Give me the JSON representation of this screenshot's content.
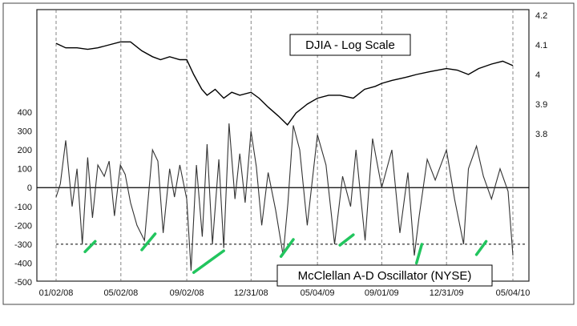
{
  "chart_data": {
    "type": "line",
    "title": "",
    "grid": "vertical dashed lines at date ticks",
    "x_axis": {
      "ticks": [
        "01/02/08",
        "05/02/08",
        "09/02/08",
        "12/31/08",
        "05/04/09",
        "09/01/09",
        "12/31/09",
        "05/04/10"
      ]
    },
    "left_axis": {
      "ticks": [
        "400",
        "300",
        "200",
        "100",
        "0",
        "-100",
        "-200",
        "-300",
        "-400",
        "-500"
      ],
      "ylim": [
        -500,
        400
      ]
    },
    "right_axis": {
      "ticks": [
        "4.2",
        "4.1",
        "4",
        "3.9",
        "3.8"
      ],
      "scale": "log",
      "ylim": [
        3.65,
        4.2
      ]
    },
    "reference_line": {
      "value": -300,
      "style": "dashed"
    },
    "zero_line": {
      "value": 0
    },
    "series": [
      {
        "name": "DJIA - Log Scale",
        "axis": "right",
        "x": [
          "01/02/08",
          "01/20/08",
          "02/10/08",
          "03/01/08",
          "03/20/08",
          "04/10/08",
          "05/01/08",
          "05/20/08",
          "06/10/08",
          "06/30/08",
          "07/15/08",
          "08/01/08",
          "08/20/08",
          "09/02/08",
          "09/15/08",
          "09/30/08",
          "10/10/08",
          "10/25/08",
          "11/10/08",
          "11/25/08",
          "12/10/08",
          "12/31/08",
          "01/15/09",
          "02/01/09",
          "02/20/09",
          "03/09/09",
          "03/25/09",
          "04/15/09",
          "05/04/09",
          "05/25/09",
          "06/15/09",
          "07/10/09",
          "07/31/09",
          "08/20/09",
          "09/01/09",
          "09/20/09",
          "10/15/09",
          "11/05/09",
          "12/01/09",
          "12/31/09",
          "01/20/10",
          "02/10/10",
          "03/01/10",
          "03/25/10",
          "04/15/10",
          "05/04/10"
        ],
        "values": [
          4.105,
          4.09,
          4.09,
          4.085,
          4.09,
          4.1,
          4.11,
          4.11,
          4.08,
          4.06,
          4.05,
          4.06,
          4.05,
          4.05,
          4.0,
          3.95,
          3.93,
          3.95,
          3.92,
          3.94,
          3.93,
          3.94,
          3.92,
          3.89,
          3.86,
          3.83,
          3.87,
          3.9,
          3.92,
          3.93,
          3.93,
          3.92,
          3.95,
          3.96,
          3.97,
          3.98,
          3.99,
          4.0,
          4.01,
          4.02,
          4.015,
          4.0,
          4.02,
          4.035,
          4.045,
          4.03
        ]
      },
      {
        "name": "McClellan A-D Oscillator (NYSE)",
        "axis": "left",
        "x": [
          "01/02/08",
          "01/10/08",
          "01/20/08",
          "02/01/08",
          "02/10/08",
          "02/20/08",
          "03/01/08",
          "03/10/08",
          "03/20/08",
          "04/01/08",
          "04/10/08",
          "04/20/08",
          "05/01/08",
          "05/10/08",
          "05/20/08",
          "06/01/08",
          "06/15/08",
          "06/30/08",
          "07/10/08",
          "07/20/08",
          "08/01/08",
          "08/10/08",
          "08/20/08",
          "09/02/08",
          "09/10/08",
          "09/20/08",
          "10/01/08",
          "10/10/08",
          "10/20/08",
          "11/01/08",
          "11/10/08",
          "11/20/08",
          "12/01/08",
          "12/10/08",
          "12/20/08",
          "12/31/08",
          "01/10/09",
          "01/20/09",
          "02/01/09",
          "02/15/09",
          "03/01/09",
          "03/10/09",
          "03/20/09",
          "04/01/09",
          "04/15/09",
          "05/04/09",
          "05/20/09",
          "06/05/09",
          "06/20/09",
          "07/05/09",
          "07/15/09",
          "08/01/09",
          "08/15/09",
          "09/01/09",
          "09/20/09",
          "10/05/09",
          "10/20/09",
          "11/01/09",
          "11/10/09",
          "11/25/09",
          "12/10/09",
          "12/31/09",
          "01/15/10",
          "02/01/10",
          "02/10/10",
          "02/25/10",
          "03/10/10",
          "03/25/10",
          "04/10/10",
          "04/25/10",
          "05/04/10"
        ],
        "values": [
          -50,
          20,
          250,
          -100,
          100,
          -300,
          160,
          -160,
          120,
          60,
          140,
          -150,
          120,
          70,
          -80,
          -200,
          -280,
          200,
          140,
          -240,
          100,
          -50,
          120,
          -60,
          -440,
          120,
          -260,
          230,
          -300,
          150,
          -320,
          340,
          -60,
          180,
          -80,
          300,
          110,
          -200,
          80,
          -120,
          -360,
          -80,
          330,
          200,
          -200,
          280,
          120,
          -300,
          60,
          -100,
          200,
          -280,
          260,
          0,
          200,
          -240,
          80,
          -360,
          -150,
          150,
          40,
          200,
          -60,
          -300,
          100,
          220,
          60,
          -60,
          100,
          -20,
          -360
        ]
      }
    ],
    "annotations": [
      {
        "type": "divergence-marks",
        "color": "#22c55e",
        "count": 8
      }
    ]
  },
  "labels": {
    "djia": "DJIA - Log Scale",
    "osc": "McClellan A-D Oscillator (NYSE)"
  },
  "colors": {
    "divergence": "#22c55e",
    "line": "#000000"
  }
}
